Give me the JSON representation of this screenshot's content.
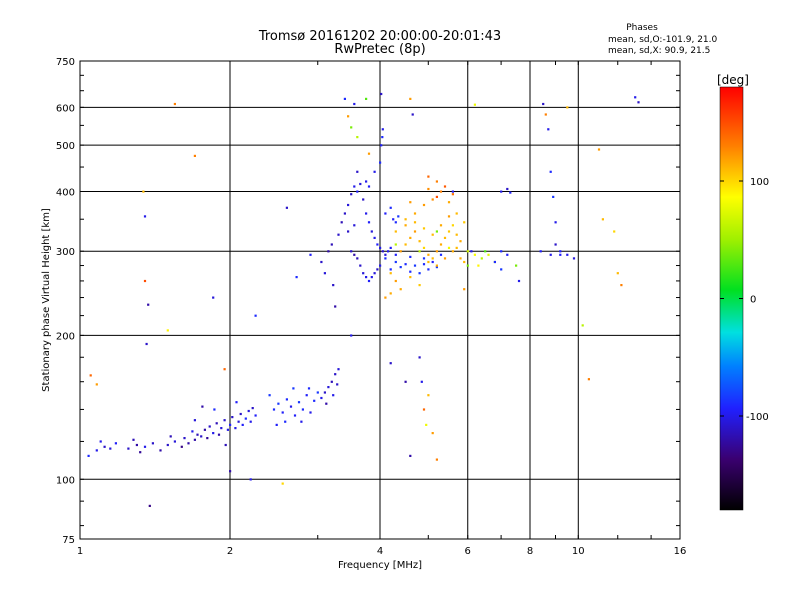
{
  "chart_data": {
    "type": "scatter",
    "title": "Tromsø 20161202 20:00:00-20:01:43",
    "subtitle": "RwPretec (8p)",
    "xlabel": "Frequency [MHz]",
    "ylabel": "Stationary phase Virtual Height [km]",
    "x_scale": "log",
    "y_scale": "log",
    "xlim": [
      1,
      16
    ],
    "ylim": [
      75,
      750
    ],
    "xticks": [
      1,
      2,
      4,
      6,
      8,
      10,
      16
    ],
    "yticks": [
      75,
      100,
      200,
      300,
      400,
      500,
      600,
      750
    ],
    "grid": true,
    "phases_header": "Phases",
    "phases_lines": [
      "mean, sd,O:-101.9, 21.0",
      "mean, sd,X:  90.9, 21.5"
    ],
    "colorbar": {
      "label": "[deg]",
      "min": -180,
      "max": 180,
      "ticks": [
        100,
        0,
        -100
      ],
      "tick_labels": [
        "100",
        "0",
        "-100"
      ]
    },
    "points_note": "x in MHz, y in km, phase in deg",
    "points": [
      [
        1.04,
        112,
        -90
      ],
      [
        1.08,
        115,
        -100
      ],
      [
        1.12,
        117,
        -110
      ],
      [
        1.15,
        116,
        -105
      ],
      [
        1.18,
        119,
        -95
      ],
      [
        1.1,
        120,
        -100
      ],
      [
        1.25,
        116,
        -110
      ],
      [
        1.3,
        118,
        -120
      ],
      [
        1.28,
        121,
        -115
      ],
      [
        1.35,
        117,
        -100
      ],
      [
        1.4,
        119,
        -110
      ],
      [
        1.32,
        114,
        -125
      ],
      [
        1.45,
        115,
        -120
      ],
      [
        1.5,
        118,
        -110
      ],
      [
        1.55,
        120,
        -105
      ],
      [
        1.52,
        123,
        -115
      ],
      [
        1.6,
        117,
        -130
      ],
      [
        1.65,
        119,
        -120
      ],
      [
        1.62,
        122,
        -110
      ],
      [
        1.7,
        121,
        -120
      ],
      [
        1.72,
        124,
        -115
      ],
      [
        1.68,
        126,
        -100
      ],
      [
        1.75,
        123,
        -110
      ],
      [
        1.78,
        127,
        -120
      ],
      [
        1.8,
        122,
        -125
      ],
      [
        1.82,
        129,
        -110
      ],
      [
        1.85,
        125,
        -100
      ],
      [
        1.88,
        131,
        -115
      ],
      [
        1.9,
        124,
        -120
      ],
      [
        1.92,
        128,
        -105
      ],
      [
        1.95,
        133,
        -110
      ],
      [
        1.98,
        127,
        -100
      ],
      [
        2.0,
        130,
        -95
      ],
      [
        2.02,
        135,
        -110
      ],
      [
        2.05,
        128,
        -100
      ],
      [
        2.08,
        132,
        -105
      ],
      [
        2.1,
        137,
        -110
      ],
      [
        2.12,
        130,
        -95
      ],
      [
        2.15,
        134,
        -90
      ],
      [
        2.18,
        139,
        -105
      ],
      [
        2.2,
        132,
        -100
      ],
      [
        2.22,
        141,
        -110
      ],
      [
        2.25,
        136,
        -95
      ],
      [
        1.86,
        140,
        -90
      ],
      [
        2.06,
        145,
        -95
      ],
      [
        1.76,
        142,
        -120
      ],
      [
        1.7,
        133,
        -105
      ],
      [
        1.96,
        118,
        -115
      ],
      [
        2.45,
        140,
        -90
      ],
      [
        2.5,
        144,
        -85
      ],
      [
        2.55,
        138,
        -95
      ],
      [
        2.6,
        147,
        -90
      ],
      [
        2.65,
        142,
        -100
      ],
      [
        2.7,
        136,
        -95
      ],
      [
        2.75,
        145,
        -85
      ],
      [
        2.8,
        140,
        -90
      ],
      [
        2.85,
        150,
        -95
      ],
      [
        2.9,
        138,
        -100
      ],
      [
        2.95,
        146,
        -90
      ],
      [
        3.0,
        152,
        -85
      ],
      [
        2.48,
        130,
        -95
      ],
      [
        2.58,
        132,
        -90
      ],
      [
        2.68,
        155,
        -85
      ],
      [
        2.78,
        132,
        -100
      ],
      [
        2.88,
        155,
        -90
      ],
      [
        2.4,
        150,
        -85
      ],
      [
        3.05,
        148,
        -100
      ],
      [
        3.1,
        152,
        -110
      ],
      [
        3.15,
        156,
        -105
      ],
      [
        3.2,
        160,
        -115
      ],
      [
        3.25,
        166,
        -110
      ],
      [
        3.3,
        170,
        -105
      ],
      [
        3.12,
        144,
        -120
      ],
      [
        3.22,
        150,
        -100
      ],
      [
        3.28,
        158,
        -110
      ],
      [
        3.05,
        285,
        -110
      ],
      [
        3.1,
        270,
        -105
      ],
      [
        3.15,
        300,
        -120
      ],
      [
        3.2,
        310,
        -115
      ],
      [
        3.22,
        255,
        -110
      ],
      [
        3.25,
        230,
        -120
      ],
      [
        3.3,
        325,
        -110
      ],
      [
        3.35,
        345,
        -115
      ],
      [
        3.4,
        360,
        -110
      ],
      [
        3.45,
        375,
        -105
      ],
      [
        3.5,
        395,
        -110
      ],
      [
        3.55,
        410,
        -100
      ],
      [
        3.6,
        400,
        -95
      ],
      [
        3.65,
        415,
        -105
      ],
      [
        3.7,
        385,
        -110
      ],
      [
        3.75,
        360,
        -100
      ],
      [
        3.8,
        345,
        -95
      ],
      [
        3.85,
        330,
        -105
      ],
      [
        3.9,
        320,
        -100
      ],
      [
        3.95,
        310,
        -95
      ],
      [
        4.0,
        305,
        -100
      ],
      [
        4.05,
        300,
        -110
      ],
      [
        4.1,
        295,
        -105
      ],
      [
        4.15,
        300,
        -100
      ],
      [
        4.2,
        305,
        -95
      ],
      [
        3.5,
        300,
        -110
      ],
      [
        3.55,
        295,
        -120
      ],
      [
        3.6,
        290,
        -115
      ],
      [
        3.65,
        280,
        -110
      ],
      [
        3.7,
        270,
        -105
      ],
      [
        3.75,
        265,
        -100
      ],
      [
        3.8,
        260,
        -95
      ],
      [
        3.85,
        265,
        -100
      ],
      [
        3.9,
        270,
        -105
      ],
      [
        3.95,
        275,
        -110
      ],
      [
        4.0,
        280,
        -100
      ],
      [
        3.45,
        330,
        -110
      ],
      [
        3.55,
        340,
        -105
      ],
      [
        3.75,
        420,
        -100
      ],
      [
        3.8,
        410,
        -95
      ],
      [
        3.9,
        440,
        -100
      ],
      [
        4.0,
        460,
        -90
      ],
      [
        4.02,
        500,
        -95
      ],
      [
        4.04,
        520,
        -90
      ],
      [
        4.05,
        540,
        -100
      ],
      [
        4.1,
        360,
        -95
      ],
      [
        4.2,
        370,
        -90
      ],
      [
        4.25,
        350,
        -95
      ],
      [
        4.3,
        345,
        -90
      ],
      [
        4.35,
        355,
        -85
      ],
      [
        3.6,
        440,
        -110
      ],
      [
        4.1,
        290,
        -90
      ],
      [
        4.3,
        285,
        -85
      ],
      [
        4.5,
        282,
        -90
      ],
      [
        4.7,
        280,
        -85
      ],
      [
        4.9,
        282,
        -90
      ],
      [
        5.1,
        285,
        -95
      ],
      [
        4.2,
        275,
        -90
      ],
      [
        4.4,
        278,
        -85
      ],
      [
        4.6,
        272,
        -90
      ],
      [
        4.8,
        270,
        -85
      ],
      [
        5.0,
        275,
        -90
      ],
      [
        5.2,
        278,
        -85
      ],
      [
        4.3,
        295,
        -95
      ],
      [
        4.6,
        292,
        -90
      ],
      [
        4.9,
        290,
        -85
      ],
      [
        5.3,
        295,
        -90
      ],
      [
        4.4,
        300,
        120
      ],
      [
        4.5,
        310,
        110
      ],
      [
        4.6,
        320,
        115
      ],
      [
        4.7,
        330,
        120
      ],
      [
        4.8,
        315,
        110
      ],
      [
        4.9,
        305,
        100
      ],
      [
        5.0,
        295,
        115
      ],
      [
        5.1,
        290,
        110
      ],
      [
        5.2,
        300,
        120
      ],
      [
        5.3,
        310,
        115
      ],
      [
        5.4,
        320,
        110
      ],
      [
        5.5,
        330,
        105
      ],
      [
        5.6,
        340,
        100
      ],
      [
        5.7,
        325,
        110
      ],
      [
        5.8,
        315,
        115
      ],
      [
        4.2,
        270,
        110
      ],
      [
        4.3,
        260,
        120
      ],
      [
        4.4,
        250,
        115
      ],
      [
        4.6,
        265,
        110
      ],
      [
        4.8,
        255,
        105
      ],
      [
        5.0,
        285,
        110
      ],
      [
        5.2,
        280,
        115
      ],
      [
        5.4,
        290,
        120
      ],
      [
        5.6,
        300,
        115
      ],
      [
        4.5,
        350,
        110
      ],
      [
        4.7,
        360,
        115
      ],
      [
        4.9,
        375,
        120
      ],
      [
        5.1,
        385,
        125
      ],
      [
        5.3,
        400,
        130
      ],
      [
        5.5,
        380,
        115
      ],
      [
        5.7,
        360,
        110
      ],
      [
        5.9,
        345,
        105
      ],
      [
        4.6,
        380,
        120
      ],
      [
        5.0,
        405,
        125
      ],
      [
        5.2,
        420,
        130
      ],
      [
        5.6,
        395,
        135
      ],
      [
        4.3,
        330,
        110
      ],
      [
        4.5,
        340,
        115
      ],
      [
        4.7,
        345,
        110
      ],
      [
        4.9,
        335,
        105
      ],
      [
        5.1,
        325,
        110
      ],
      [
        5.3,
        340,
        115
      ],
      [
        5.5,
        355,
        120
      ],
      [
        5.7,
        305,
        110
      ],
      [
        5.8,
        290,
        115
      ],
      [
        5.9,
        285,
        110
      ],
      [
        4.1,
        240,
        120
      ],
      [
        4.2,
        245,
        115
      ],
      [
        5.0,
        430,
        140
      ],
      [
        5.2,
        390,
        150
      ],
      [
        5.4,
        410,
        145
      ],
      [
        4.8,
        300,
        60
      ],
      [
        5.2,
        330,
        40
      ],
      [
        5.5,
        305,
        80
      ],
      [
        6.0,
        300,
        70
      ],
      [
        6.2,
        295,
        85
      ],
      [
        6.4,
        290,
        60
      ],
      [
        6.6,
        295,
        75
      ],
      [
        6.3,
        280,
        90
      ],
      [
        6.8,
        285,
        70
      ],
      [
        7.0,
        300,
        -90
      ],
      [
        7.2,
        295,
        -95
      ],
      [
        7.6,
        260,
        -100
      ],
      [
        8.4,
        300,
        -95
      ],
      [
        8.8,
        295,
        -100
      ],
      [
        9.0,
        310,
        -110
      ],
      [
        9.2,
        300,
        -95
      ],
      [
        9.5,
        295,
        -100
      ],
      [
        9.8,
        290,
        -105
      ],
      [
        7.0,
        400,
        -100
      ],
      [
        7.2,
        405,
        -110
      ],
      [
        7.3,
        398,
        -95
      ],
      [
        6.8,
        285,
        -90
      ],
      [
        7.0,
        275,
        -85
      ],
      [
        1.05,
        165,
        140
      ],
      [
        1.08,
        158,
        120
      ],
      [
        1.34,
        400,
        110
      ],
      [
        1.35,
        260,
        150
      ],
      [
        1.35,
        355,
        -100
      ],
      [
        1.37,
        232,
        -120
      ],
      [
        1.36,
        192,
        -110
      ],
      [
        1.38,
        88,
        -130
      ],
      [
        1.5,
        205,
        90
      ],
      [
        1.55,
        610,
        130
      ],
      [
        1.7,
        475,
        130
      ],
      [
        1.85,
        240,
        -105
      ],
      [
        1.95,
        170,
        140
      ],
      [
        2.0,
        104,
        -120
      ],
      [
        2.25,
        220,
        -90
      ],
      [
        2.55,
        98,
        100
      ],
      [
        2.2,
        100,
        -100
      ],
      [
        2.6,
        370,
        -110
      ],
      [
        2.72,
        265,
        -90
      ],
      [
        3.4,
        625,
        -90
      ],
      [
        3.45,
        575,
        120
      ],
      [
        3.5,
        545,
        40
      ],
      [
        3.55,
        610,
        -100
      ],
      [
        3.6,
        520,
        60
      ],
      [
        3.5,
        200,
        -100
      ],
      [
        4.02,
        640,
        -110
      ],
      [
        3.75,
        625,
        30
      ],
      [
        4.2,
        175,
        -110
      ],
      [
        4.5,
        160,
        -120
      ],
      [
        4.6,
        625,
        120
      ],
      [
        4.65,
        580,
        -110
      ],
      [
        4.8,
        180,
        -110
      ],
      [
        4.85,
        160,
        -100
      ],
      [
        4.9,
        140,
        140
      ],
      [
        4.95,
        130,
        80
      ],
      [
        5.0,
        150,
        110
      ],
      [
        4.6,
        112,
        -120
      ],
      [
        5.1,
        125,
        120
      ],
      [
        5.2,
        110,
        130
      ],
      [
        6.0,
        280,
        40
      ],
      [
        6.2,
        608,
        80
      ],
      [
        6.5,
        300,
        30
      ],
      [
        7.5,
        280,
        40
      ],
      [
        8.5,
        610,
        -110
      ],
      [
        8.7,
        540,
        -100
      ],
      [
        8.8,
        440,
        -90
      ],
      [
        8.9,
        390,
        -85
      ],
      [
        9.0,
        345,
        -100
      ],
      [
        8.6,
        580,
        130
      ],
      [
        9.2,
        295,
        -95
      ],
      [
        9.5,
        600,
        110
      ],
      [
        10.2,
        210,
        60
      ],
      [
        11.0,
        490,
        120
      ],
      [
        11.2,
        350,
        110
      ],
      [
        11.8,
        330,
        100
      ],
      [
        12.0,
        270,
        110
      ],
      [
        12.2,
        255,
        130
      ],
      [
        13.0,
        630,
        -100
      ],
      [
        13.2,
        615,
        -110
      ],
      [
        10.5,
        162,
        130
      ],
      [
        2.9,
        295,
        -95
      ],
      [
        3.8,
        480,
        120
      ],
      [
        4.3,
        310,
        60
      ],
      [
        5.9,
        250,
        120
      ],
      [
        6.1,
        300,
        -100
      ],
      [
        5.6,
        400,
        -100
      ]
    ]
  }
}
